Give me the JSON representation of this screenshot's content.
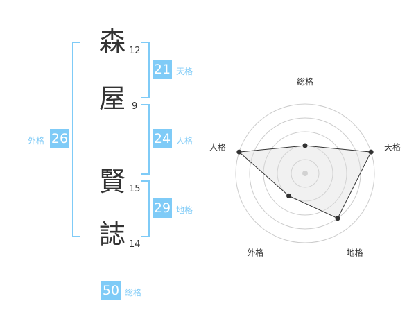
{
  "name": [
    {
      "char": "森",
      "strokes": "12"
    },
    {
      "char": "屋",
      "strokes": "9"
    },
    {
      "char": "賢",
      "strokes": "15"
    },
    {
      "char": "誌",
      "strokes": "14"
    }
  ],
  "kaku": {
    "tenkaku": {
      "value": "21",
      "label": "天格"
    },
    "jinkaku": {
      "value": "24",
      "label": "人格"
    },
    "chikaku": {
      "value": "29",
      "label": "地格"
    },
    "gaikaku": {
      "value": "26",
      "label": "外格"
    },
    "soukaku": {
      "value": "50",
      "label": "総格"
    }
  },
  "colors": {
    "accent": "#7fcbf7",
    "text": "#333333"
  },
  "chart_data": {
    "type": "radar",
    "axes": [
      "総格",
      "天格",
      "地格",
      "外格",
      "人格"
    ],
    "values": [
      2,
      5,
      4,
      2,
      5
    ],
    "range": [
      0,
      5
    ],
    "rings": 5
  }
}
